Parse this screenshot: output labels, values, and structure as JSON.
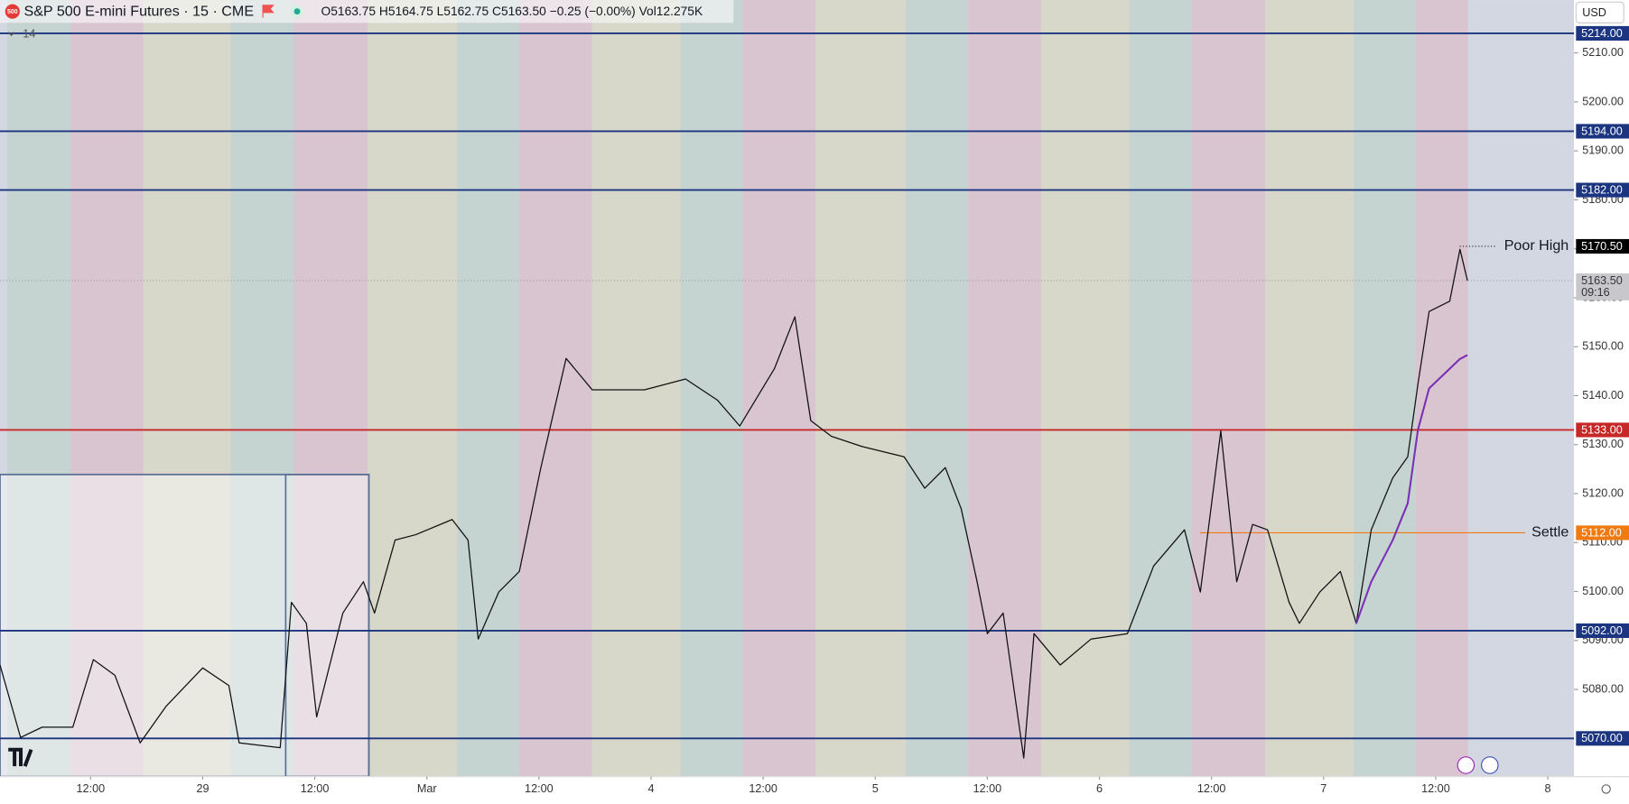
{
  "header": {
    "icon": "500",
    "title": "S&P 500 E-mini Futures · 15 · CME",
    "ohlc": "O5163.75 H5164.75 L5162.75 C5163.50 −0.25 (−0.00%) Vol12.275K",
    "indicator": "14",
    "currency": "USD"
  },
  "chart_data": {
    "type": "line",
    "x": [
      2.3,
      4.5,
      6.8,
      10.1,
      12.3,
      14.6,
      17.3,
      20.1,
      24.0,
      26.8,
      27.9,
      32.3,
      33.5,
      35.1,
      36.2,
      39.0,
      41.2,
      42.4,
      44.6,
      46.8,
      50.7,
      52.4,
      53.5,
      55.7,
      57.9,
      60.2,
      62.9,
      65.7,
      71.3,
      75.7,
      79.1,
      81.5,
      85.2,
      87.4,
      89.1,
      91.3,
      94.6,
      99.1,
      101.3,
      103.5,
      105.2,
      106.9,
      108.0,
      109.7,
      111.9,
      113.0,
      115.8,
      119.1,
      123.0,
      125.8,
      129.1,
      130.8,
      133.0,
      134.7,
      136.4,
      138.0,
      140.3,
      141.4,
      143.6,
      145.8,
      147.5,
      149.1,
      151.4,
      153.0,
      154.1,
      155.3,
      157.5,
      158.6,
      159.4
    ],
    "series": [
      {
        "color": "#111111",
        "values": [
          5085.0,
          5070.2,
          5072.3,
          5072.3,
          5086.1,
          5082.9,
          5069.1,
          5076.6,
          5084.4,
          5080.8,
          5069.1,
          5068.1,
          5097.8,
          5093.5,
          5074.4,
          5095.6,
          5102.0,
          5095.6,
          5110.5,
          5111.6,
          5114.7,
          5110.5,
          5090.3,
          5099.9,
          5104.1,
          5125.3,
          5147.6,
          5141.2,
          5141.2,
          5143.4,
          5139.1,
          5133.8,
          5145.5,
          5156.1,
          5134.9,
          5131.7,
          5129.6,
          5127.5,
          5121.1,
          5125.3,
          5116.9,
          5102.0,
          5091.4,
          5095.6,
          5066.0,
          5091.4,
          5085.0,
          5090.3,
          5091.4,
          5105.2,
          5112.6,
          5099.9,
          5132.8,
          5102.0,
          5113.7,
          5112.6,
          5097.8,
          5093.5,
          5099.9,
          5104.1,
          5093.5,
          5112.6,
          5123.2,
          5127.5,
          5142.3,
          5157.2,
          5159.3,
          5169.9,
          5163.5
        ]
      },
      {
        "color": "#7b2fb5",
        "values": [
          null,
          null,
          null,
          null,
          null,
          null,
          null,
          null,
          null,
          null,
          null,
          null,
          null,
          null,
          null,
          null,
          null,
          null,
          null,
          null,
          null,
          null,
          null,
          null,
          null,
          null,
          null,
          null,
          null,
          null,
          null,
          null,
          null,
          null,
          null,
          null,
          null,
          null,
          null,
          null,
          null,
          null,
          null,
          null,
          null,
          null,
          null,
          null,
          null,
          null,
          null,
          null,
          null,
          null,
          null,
          null,
          null,
          null,
          null,
          null,
          5093.5,
          5102.0,
          5110.5,
          5118.0,
          5133.0,
          5141.5,
          5145.5,
          5147.5,
          5148.3
        ]
      }
    ],
    "xlim": [
      2.3,
      170.8
    ],
    "xticks": [
      {
        "value": 12,
        "label": "12:00"
      },
      {
        "value": 24,
        "label": "29"
      },
      {
        "value": 36,
        "label": "12:00"
      },
      {
        "value": 48,
        "label": "Mar"
      },
      {
        "value": 60,
        "label": "12:00"
      },
      {
        "value": 72,
        "label": "4"
      },
      {
        "value": 84,
        "label": "12:00"
      },
      {
        "value": 96,
        "label": "5"
      },
      {
        "value": 108,
        "label": "12:00"
      },
      {
        "value": 120,
        "label": "6"
      },
      {
        "value": 132,
        "label": "12:00"
      },
      {
        "value": 144,
        "label": "7"
      },
      {
        "value": 156,
        "label": "12:00"
      },
      {
        "value": 168,
        "label": "8"
      }
    ],
    "ylim": [
      5062.2,
      5220.8
    ],
    "yticks": [
      {
        "value": 5080,
        "label": "5080.00"
      },
      {
        "value": 5090,
        "label": "5090.00"
      },
      {
        "value": 5100,
        "label": "5100.00"
      },
      {
        "value": 5110,
        "label": "5110.00"
      },
      {
        "value": 5120,
        "label": "5120.00"
      },
      {
        "value": 5130,
        "label": "5130.00"
      },
      {
        "value": 5140,
        "label": "5140.00"
      },
      {
        "value": 5150,
        "label": "5150.00"
      },
      {
        "value": 5160,
        "label": "5160.00"
      },
      {
        "value": 5170,
        "label": "5170.00"
      },
      {
        "value": 5180,
        "label": "5180.00"
      },
      {
        "value": 5190,
        "label": "5190.00"
      },
      {
        "value": 5200,
        "label": "5200.00"
      },
      {
        "value": 5210,
        "label": "5210.00"
      }
    ],
    "levels": [
      {
        "value": 5214,
        "label": "5214.00",
        "color": "#1b3580"
      },
      {
        "value": 5194,
        "label": "5194.00",
        "color": "#1b3580"
      },
      {
        "value": 5182,
        "label": "5182.00",
        "color": "#1b3580"
      },
      {
        "value": 5133,
        "label": "5133.00",
        "color": "#c62828"
      },
      {
        "value": 5092,
        "label": "5092.00",
        "color": "#1b3580"
      },
      {
        "value": 5070,
        "label": "5070.00",
        "color": "#1b3580"
      }
    ],
    "poor_high": {
      "value": 5170.5,
      "label": "5170.50",
      "note": "Poor High",
      "color": "#000000"
    },
    "settle": {
      "value": 5112,
      "label": "5112.00",
      "note": "Settle",
      "color": "#f07a10"
    },
    "last": {
      "value": 5163.5,
      "label": "5163.50",
      "countdown": "09:16",
      "color": "#c8c8cc"
    }
  }
}
